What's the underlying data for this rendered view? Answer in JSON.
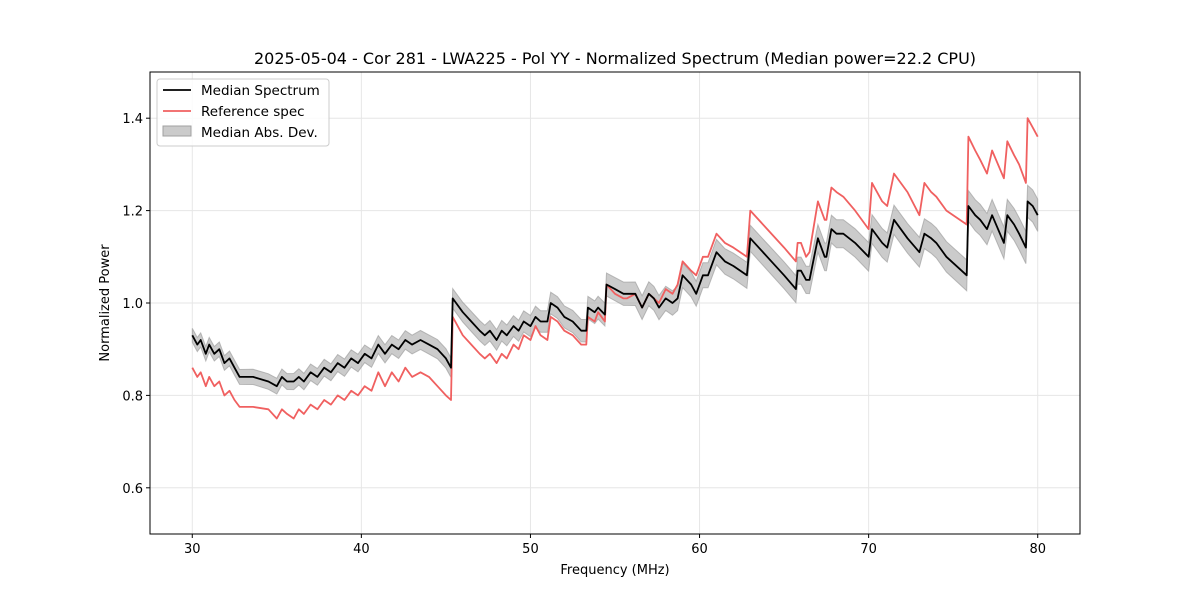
{
  "chart_data": {
    "type": "line",
    "title": "2025-05-04 - Cor 281 - LWA225 - Pol YY - Normalized Spectrum (Median power=22.2 CPU)",
    "xlabel": "Frequency (MHz)",
    "ylabel": "Normalized Power",
    "xlim": [
      27.5,
      82.5
    ],
    "ylim": [
      0.5,
      1.5
    ],
    "xticks": [
      30,
      40,
      50,
      60,
      70,
      80
    ],
    "xtick_labels": [
      "30",
      "40",
      "50",
      "60",
      "70",
      "80"
    ],
    "yticks": [
      0.6,
      0.8,
      1.0,
      1.2,
      1.4
    ],
    "ytick_labels": [
      "0.6",
      "0.8",
      "1.0",
      "1.2",
      "1.4"
    ],
    "grid": true,
    "legend_position": "top-left",
    "legend": [
      {
        "label": "Median Spectrum",
        "kind": "line",
        "color": "#000000"
      },
      {
        "label": "Reference spec",
        "kind": "line",
        "color": "#f06060"
      },
      {
        "label": "Median Abs. Dev.",
        "kind": "band",
        "color": "#a0a0a0"
      }
    ],
    "series": [
      {
        "name": "Median Spectrum",
        "color": "#000000",
        "x": [
          30.0,
          30.3,
          30.5,
          30.8,
          31.0,
          31.3,
          31.6,
          31.9,
          32.2,
          32.5,
          32.8,
          33.6,
          34.5,
          35.0,
          35.3,
          35.6,
          36.0,
          36.3,
          36.6,
          37.0,
          37.4,
          37.8,
          38.2,
          38.6,
          39.0,
          39.4,
          39.8,
          40.2,
          40.6,
          41.0,
          41.4,
          41.8,
          42.2,
          42.6,
          43.0,
          43.5,
          44.0,
          44.5,
          45.0,
          45.3,
          45.4,
          46.0,
          46.5,
          47.0,
          47.3,
          47.6,
          48.0,
          48.3,
          48.6,
          49.0,
          49.3,
          49.6,
          50.0,
          50.3,
          50.6,
          51.0,
          51.2,
          51.6,
          52.0,
          52.5,
          53.0,
          53.3,
          53.4,
          53.8,
          54.0,
          54.4,
          54.5,
          55.0,
          55.5,
          55.7,
          56.2,
          56.6,
          57.0,
          57.3,
          57.6,
          58.0,
          58.4,
          58.7,
          59.0,
          59.5,
          59.8,
          60.2,
          60.5,
          61.0,
          61.5,
          62.0,
          62.8,
          63.0,
          64.0,
          65.0,
          65.7,
          65.8,
          66.0,
          66.3,
          66.5,
          67.0,
          67.4,
          67.5,
          67.8,
          68.1,
          68.5,
          69.2,
          70.0,
          70.2,
          70.8,
          71.1,
          71.5,
          72.3,
          73.0,
          73.3,
          73.7,
          74.0,
          74.6,
          75.8,
          75.9,
          76.3,
          76.6,
          77.0,
          77.3,
          78.0,
          78.2,
          78.6,
          78.9,
          79.3,
          79.4,
          79.7,
          80.0
        ],
        "values": [
          0.93,
          0.91,
          0.92,
          0.89,
          0.91,
          0.89,
          0.9,
          0.87,
          0.88,
          0.86,
          0.84,
          0.84,
          0.83,
          0.82,
          0.84,
          0.83,
          0.83,
          0.84,
          0.83,
          0.85,
          0.84,
          0.86,
          0.85,
          0.87,
          0.86,
          0.88,
          0.87,
          0.89,
          0.88,
          0.91,
          0.89,
          0.91,
          0.9,
          0.92,
          0.91,
          0.92,
          0.91,
          0.9,
          0.88,
          0.86,
          1.01,
          0.98,
          0.96,
          0.94,
          0.93,
          0.94,
          0.92,
          0.94,
          0.93,
          0.95,
          0.94,
          0.96,
          0.95,
          0.97,
          0.96,
          0.96,
          1.0,
          0.99,
          0.97,
          0.96,
          0.94,
          0.94,
          0.99,
          0.98,
          0.99,
          0.975,
          1.04,
          1.03,
          1.02,
          1.02,
          1.02,
          0.99,
          1.02,
          1.01,
          0.99,
          1.01,
          1.0,
          1.01,
          1.06,
          1.04,
          1.02,
          1.06,
          1.06,
          1.11,
          1.09,
          1.08,
          1.06,
          1.14,
          1.1,
          1.06,
          1.03,
          1.07,
          1.07,
          1.05,
          1.05,
          1.14,
          1.1,
          1.1,
          1.16,
          1.15,
          1.15,
          1.13,
          1.1,
          1.16,
          1.13,
          1.12,
          1.18,
          1.14,
          1.11,
          1.15,
          1.14,
          1.13,
          1.1,
          1.06,
          1.21,
          1.19,
          1.18,
          1.16,
          1.19,
          1.13,
          1.19,
          1.17,
          1.15,
          1.12,
          1.22,
          1.21,
          1.19
        ]
      },
      {
        "name": "Reference spec",
        "color": "#f06060",
        "x": [
          30.0,
          30.3,
          30.5,
          30.8,
          31.0,
          31.3,
          31.6,
          31.9,
          32.2,
          32.5,
          32.8,
          33.6,
          34.5,
          35.0,
          35.3,
          35.6,
          36.0,
          36.3,
          36.6,
          37.0,
          37.4,
          37.8,
          38.2,
          38.6,
          39.0,
          39.4,
          39.8,
          40.2,
          40.6,
          41.0,
          41.4,
          41.8,
          42.2,
          42.6,
          43.0,
          43.5,
          44.0,
          44.5,
          45.0,
          45.3,
          45.4,
          46.0,
          46.5,
          47.0,
          47.3,
          47.6,
          48.0,
          48.3,
          48.6,
          49.0,
          49.3,
          49.6,
          50.0,
          50.3,
          50.6,
          51.0,
          51.2,
          51.6,
          52.0,
          52.5,
          53.0,
          53.3,
          53.4,
          53.8,
          54.0,
          54.4,
          54.5,
          55.0,
          55.5,
          55.7,
          56.2,
          56.6,
          57.0,
          57.3,
          57.6,
          58.0,
          58.4,
          58.7,
          59.0,
          59.5,
          59.8,
          60.2,
          60.5,
          61.0,
          61.5,
          62.0,
          62.8,
          63.0,
          64.0,
          65.0,
          65.7,
          65.8,
          66.0,
          66.3,
          66.5,
          67.0,
          67.4,
          67.5,
          67.8,
          68.1,
          68.5,
          69.2,
          70.0,
          70.2,
          70.8,
          71.1,
          71.5,
          72.3,
          73.0,
          73.3,
          73.7,
          74.0,
          74.6,
          75.8,
          75.9,
          76.3,
          76.6,
          77.0,
          77.3,
          78.0,
          78.2,
          78.6,
          78.9,
          79.3,
          79.4,
          79.7,
          80.0
        ],
        "values": [
          0.86,
          0.84,
          0.85,
          0.82,
          0.84,
          0.82,
          0.83,
          0.8,
          0.81,
          0.79,
          0.775,
          0.775,
          0.77,
          0.75,
          0.77,
          0.76,
          0.75,
          0.77,
          0.76,
          0.78,
          0.77,
          0.79,
          0.78,
          0.8,
          0.79,
          0.81,
          0.8,
          0.82,
          0.81,
          0.85,
          0.82,
          0.85,
          0.83,
          0.86,
          0.84,
          0.85,
          0.84,
          0.82,
          0.8,
          0.79,
          0.97,
          0.93,
          0.91,
          0.89,
          0.88,
          0.89,
          0.87,
          0.89,
          0.88,
          0.91,
          0.9,
          0.93,
          0.92,
          0.95,
          0.93,
          0.92,
          0.97,
          0.96,
          0.94,
          0.93,
          0.91,
          0.91,
          0.97,
          0.96,
          0.98,
          0.96,
          1.04,
          1.02,
          1.01,
          1.01,
          1.02,
          0.99,
          1.02,
          1.01,
          1.0,
          1.03,
          1.02,
          1.04,
          1.09,
          1.07,
          1.06,
          1.1,
          1.1,
          1.15,
          1.13,
          1.12,
          1.1,
          1.2,
          1.16,
          1.12,
          1.09,
          1.13,
          1.13,
          1.1,
          1.11,
          1.22,
          1.18,
          1.18,
          1.25,
          1.24,
          1.23,
          1.2,
          1.16,
          1.26,
          1.22,
          1.21,
          1.28,
          1.24,
          1.19,
          1.26,
          1.24,
          1.23,
          1.2,
          1.17,
          1.36,
          1.33,
          1.31,
          1.28,
          1.33,
          1.27,
          1.35,
          1.32,
          1.3,
          1.26,
          1.4,
          1.38,
          1.36
        ]
      }
    ],
    "mad_band": {
      "name": "Median Abs. Dev.",
      "color": "#a0a0a0",
      "half_width_start": 0.015,
      "half_width_end": 0.035
    }
  }
}
